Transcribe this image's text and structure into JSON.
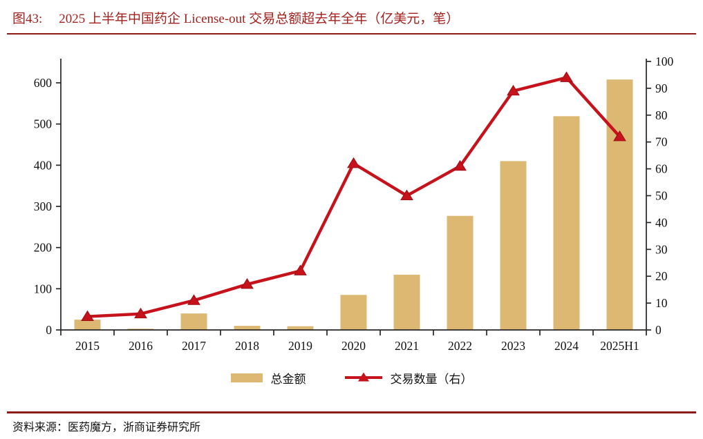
{
  "header": {
    "figure_label": "图43:",
    "title": "2025 上半年中国药企 License-out 交易总额超去年全年（亿美元，笔）"
  },
  "chart_data": {
    "type": "combo",
    "categories": [
      "2015",
      "2016",
      "2017",
      "2018",
      "2019",
      "2020",
      "2021",
      "2022",
      "2023",
      "2024",
      "2025H1"
    ],
    "series": [
      {
        "name": "总金额",
        "type": "bar",
        "axis": "left",
        "color": "#DCB873",
        "values": [
          25,
          3,
          40,
          10,
          9,
          85,
          134,
          277,
          410,
          519,
          608
        ]
      },
      {
        "name": "交易数量（右）",
        "type": "line",
        "axis": "right",
        "color": "#C5121B",
        "values": [
          5,
          6,
          11,
          17,
          22,
          62,
          50,
          61,
          89,
          94,
          72
        ]
      }
    ],
    "left_axis": {
      "min": 0,
      "max": 600,
      "step": 100,
      "tick_labels": [
        "0",
        "100",
        "200",
        "300",
        "400",
        "500",
        "600"
      ]
    },
    "right_axis": {
      "min": 0,
      "max": 100,
      "step": 10,
      "tick_labels": [
        "0",
        "10",
        "20",
        "30",
        "40",
        "50",
        "60",
        "70",
        "80",
        "90",
        "100"
      ]
    },
    "grid": false,
    "legend_position": "bottom"
  },
  "legend": {
    "items": [
      {
        "label": "总金额",
        "swatch": "bar",
        "color": "#DCB873"
      },
      {
        "label": "交易数量（右）",
        "swatch": "line-triangle",
        "color": "#C5121B"
      }
    ]
  },
  "footer": {
    "source": "资料来源：医药魔方，浙商证券研究所"
  },
  "colors": {
    "title_red": "#A3201D",
    "rule_red": "#8C1A17",
    "bar_gold": "#DCB873",
    "line_red": "#C5121B",
    "marker_edge_red": "#9E0E16",
    "axis": "#262626",
    "text": "#111111"
  }
}
